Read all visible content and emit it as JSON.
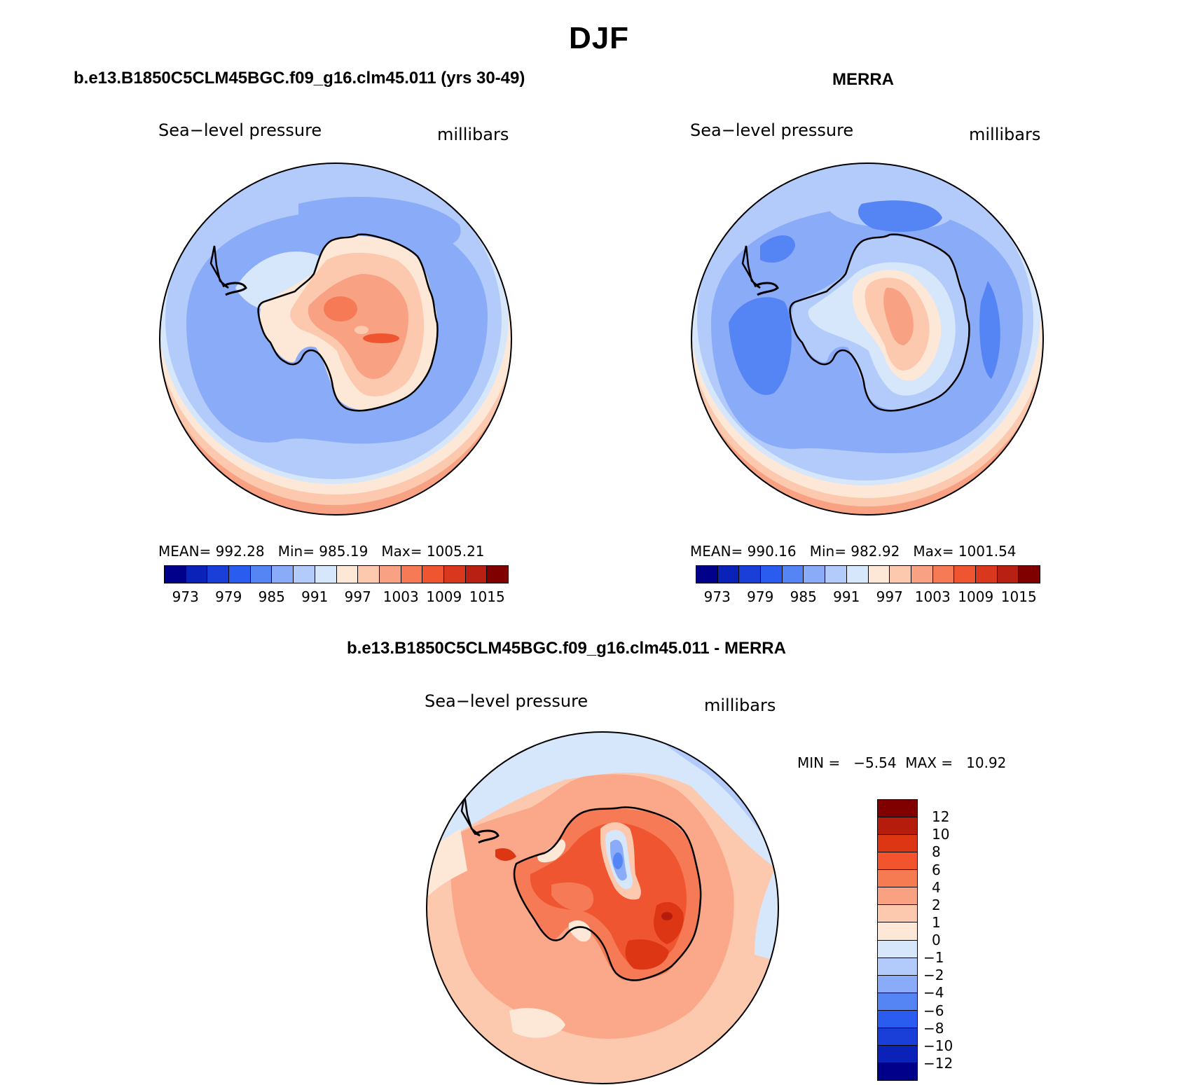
{
  "title": "DJF",
  "panels": [
    {
      "case_title": "b.e13.B1850C5CLM45BGC.f09_g16.clm45.011 (yrs 30-49)",
      "variable": "Sea−level pressure",
      "units": "millibars",
      "stats": "MEAN= 992.28   Min= 985.19   Max= 1005.21"
    },
    {
      "case_title": "MERRA",
      "variable": "Sea−level pressure",
      "units": "millibars",
      "stats": "MEAN= 990.16   Min= 982.92   Max= 1001.54"
    }
  ],
  "abs_colorbar": {
    "colors": [
      "#00008b",
      "#0a22b8",
      "#1a3fd9",
      "#2a5cf0",
      "#5584f5",
      "#8aacf8",
      "#b3cbfa",
      "#d6e6fb",
      "#fde8d8",
      "#fcc9ae",
      "#f9a283",
      "#f67a55",
      "#ef5530",
      "#d9381e",
      "#b82013",
      "#800000"
    ],
    "tick_labels": [
      "973",
      "979",
      "985",
      "991",
      "997",
      "1003",
      "1009",
      "1015"
    ]
  },
  "diff_panel": {
    "case_title": "b.e13.B1850C5CLM45BGC.f09_g16.clm45.011 - MERRA",
    "variable": "Sea−level pressure",
    "units": "millibars",
    "minmax": "MIN =   −5.54  MAX =   10.92",
    "colorbar": {
      "colors": [
        "#800000",
        "#b51c0c",
        "#dd3614",
        "#f2542e",
        "#f67b52",
        "#f9a283",
        "#fcc9ae",
        "#fde8d8",
        "#d6e6fb",
        "#b3cbfa",
        "#8aacf8",
        "#5584f5",
        "#2a5cf0",
        "#1a3fd9",
        "#0a22b8",
        "#00008b"
      ],
      "tick_labels": [
        "12",
        "10",
        "8",
        "6",
        "4",
        "2",
        "1",
        "0",
        "−1",
        "−2",
        "−4",
        "−6",
        "−8",
        "−10",
        "−12"
      ]
    }
  }
}
